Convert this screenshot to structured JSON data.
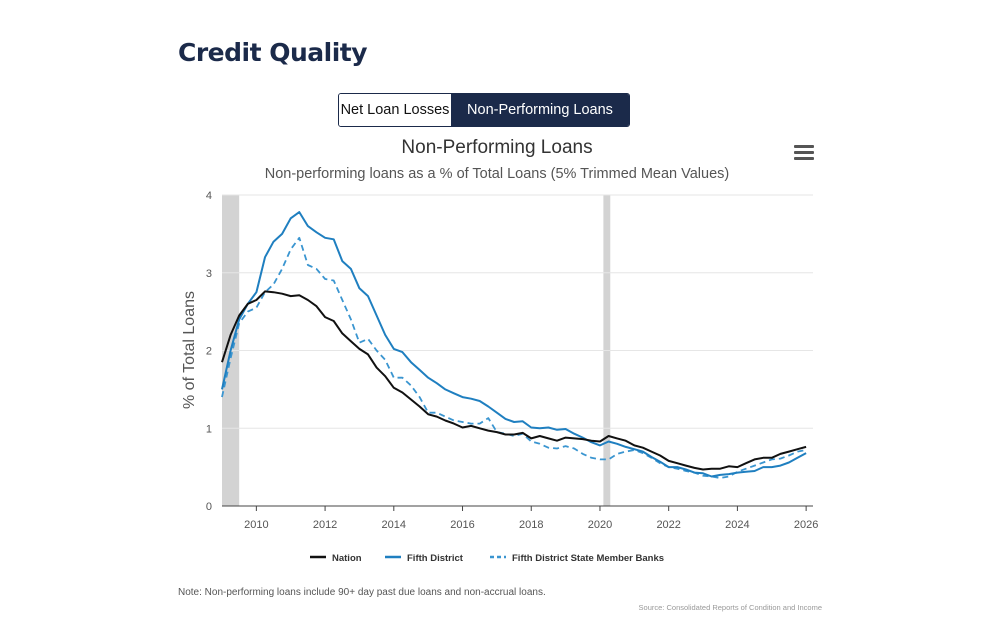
{
  "header": {
    "title": "Credit Quality"
  },
  "toggle": {
    "options": [
      {
        "label": "Net Loan Losses",
        "active": false
      },
      {
        "label": "Non-Performing Loans",
        "active": true
      }
    ]
  },
  "chart_menu_icon": "hamburger-menu-icon",
  "colors": {
    "nation": "#111111",
    "fifth_district": "#1f7fc0",
    "state_member": "#3a95d0",
    "recession": "#d3d3d3",
    "navy": "#1b2a4a"
  },
  "chart_data": {
    "type": "line",
    "title": "Non-Performing Loans",
    "subtitle": "Non-performing loans as a % of Total Loans (5% Trimmed Mean Values)",
    "ylabel": "% of Total Loans",
    "xlabel": "",
    "xlim": [
      2009.0,
      2026.2
    ],
    "ylim": [
      0,
      4
    ],
    "x_ticks": [
      2010,
      2012,
      2014,
      2016,
      2018,
      2020,
      2022,
      2024,
      2026
    ],
    "y_ticks": [
      0,
      1,
      2,
      3,
      4
    ],
    "recessions": [
      [
        2009.0,
        2009.5
      ],
      [
        2020.1,
        2020.3
      ]
    ],
    "legend_position": "bottom",
    "series": [
      {
        "name": "Nation",
        "style": "solid",
        "color": "#111111",
        "x": [
          2009.0,
          2009.25,
          2009.5,
          2009.75,
          2010.0,
          2010.25,
          2010.5,
          2010.75,
          2011.0,
          2011.25,
          2011.5,
          2011.75,
          2012.0,
          2012.25,
          2012.5,
          2012.75,
          2013.0,
          2013.25,
          2013.5,
          2013.75,
          2014.0,
          2014.25,
          2014.5,
          2014.75,
          2015.0,
          2015.25,
          2015.5,
          2015.75,
          2016.0,
          2016.25,
          2016.5,
          2016.75,
          2017.0,
          2017.25,
          2017.5,
          2017.75,
          2018.0,
          2018.25,
          2018.5,
          2018.75,
          2019.0,
          2019.25,
          2019.5,
          2019.75,
          2020.0,
          2020.25,
          2020.5,
          2020.75,
          2021.0,
          2021.25,
          2021.5,
          2021.75,
          2022.0,
          2022.25,
          2022.5,
          2022.75,
          2023.0,
          2023.25,
          2023.5,
          2023.75,
          2024.0,
          2024.25,
          2024.5,
          2024.75,
          2025.0,
          2025.25,
          2025.5,
          2025.75,
          2026.0
        ],
        "values": [
          1.85,
          2.2,
          2.45,
          2.6,
          2.65,
          2.76,
          2.75,
          2.73,
          2.7,
          2.71,
          2.65,
          2.57,
          2.43,
          2.38,
          2.22,
          2.12,
          2.02,
          1.95,
          1.78,
          1.67,
          1.52,
          1.46,
          1.37,
          1.28,
          1.18,
          1.15,
          1.1,
          1.06,
          1.01,
          1.03,
          1.0,
          0.97,
          0.95,
          0.92,
          0.92,
          0.94,
          0.87,
          0.9,
          0.87,
          0.84,
          0.88,
          0.87,
          0.86,
          0.84,
          0.83,
          0.9,
          0.87,
          0.84,
          0.78,
          0.75,
          0.7,
          0.65,
          0.58,
          0.55,
          0.52,
          0.49,
          0.47,
          0.48,
          0.48,
          0.51,
          0.5,
          0.55,
          0.6,
          0.62,
          0.62,
          0.67,
          0.7,
          0.73,
          0.76
        ]
      },
      {
        "name": "Fifth District",
        "style": "solid",
        "color": "#1f7fc0",
        "x": [
          2009.0,
          2009.25,
          2009.5,
          2009.75,
          2010.0,
          2010.25,
          2010.5,
          2010.75,
          2011.0,
          2011.25,
          2011.5,
          2011.75,
          2012.0,
          2012.25,
          2012.5,
          2012.75,
          2013.0,
          2013.25,
          2013.5,
          2013.75,
          2014.0,
          2014.25,
          2014.5,
          2014.75,
          2015.0,
          2015.25,
          2015.5,
          2015.75,
          2016.0,
          2016.25,
          2016.5,
          2016.75,
          2017.0,
          2017.25,
          2017.5,
          2017.75,
          2018.0,
          2018.25,
          2018.5,
          2018.75,
          2019.0,
          2019.25,
          2019.5,
          2019.75,
          2020.0,
          2020.25,
          2020.5,
          2020.75,
          2021.0,
          2021.25,
          2021.5,
          2021.75,
          2022.0,
          2022.25,
          2022.5,
          2022.75,
          2023.0,
          2023.25,
          2023.5,
          2023.75,
          2024.0,
          2024.25,
          2024.5,
          2024.75,
          2025.0,
          2025.25,
          2025.5,
          2025.75,
          2026.0
        ],
        "values": [
          1.5,
          2.0,
          2.4,
          2.6,
          2.75,
          3.2,
          3.4,
          3.5,
          3.7,
          3.78,
          3.6,
          3.52,
          3.45,
          3.43,
          3.15,
          3.05,
          2.8,
          2.7,
          2.45,
          2.2,
          2.02,
          1.98,
          1.85,
          1.75,
          1.65,
          1.58,
          1.5,
          1.45,
          1.4,
          1.38,
          1.35,
          1.28,
          1.2,
          1.12,
          1.08,
          1.09,
          1.01,
          1.0,
          1.01,
          0.98,
          0.99,
          0.93,
          0.88,
          0.82,
          0.78,
          0.83,
          0.8,
          0.76,
          0.73,
          0.7,
          0.63,
          0.57,
          0.5,
          0.5,
          0.47,
          0.43,
          0.42,
          0.38,
          0.4,
          0.41,
          0.43,
          0.44,
          0.45,
          0.5,
          0.5,
          0.52,
          0.56,
          0.62,
          0.68
        ]
      },
      {
        "name": "Fifth District State Member Banks",
        "style": "dashed",
        "color": "#3a95d0",
        "x": [
          2009.0,
          2009.25,
          2009.5,
          2009.75,
          2010.0,
          2010.25,
          2010.5,
          2010.75,
          2011.0,
          2011.25,
          2011.5,
          2011.75,
          2012.0,
          2012.25,
          2012.5,
          2012.75,
          2013.0,
          2013.25,
          2013.5,
          2013.75,
          2014.0,
          2014.25,
          2014.5,
          2014.75,
          2015.0,
          2015.25,
          2015.5,
          2015.75,
          2016.0,
          2016.25,
          2016.5,
          2016.75,
          2017.0,
          2017.25,
          2017.5,
          2017.75,
          2018.0,
          2018.25,
          2018.5,
          2018.75,
          2019.0,
          2019.25,
          2019.5,
          2019.75,
          2020.0,
          2020.25,
          2020.5,
          2020.75,
          2021.0,
          2021.25,
          2021.5,
          2021.75,
          2022.0,
          2022.25,
          2022.5,
          2022.75,
          2023.0,
          2023.25,
          2023.5,
          2023.75,
          2024.0,
          2024.25,
          2024.5,
          2024.75,
          2025.0,
          2025.25,
          2025.5,
          2025.75,
          2026.0
        ],
        "values": [
          1.4,
          1.9,
          2.35,
          2.5,
          2.55,
          2.75,
          2.85,
          3.05,
          3.3,
          3.45,
          3.1,
          3.05,
          2.92,
          2.9,
          2.65,
          2.4,
          2.1,
          2.15,
          2.0,
          1.88,
          1.65,
          1.65,
          1.55,
          1.4,
          1.2,
          1.2,
          1.15,
          1.1,
          1.08,
          1.06,
          1.06,
          1.13,
          0.95,
          0.93,
          0.9,
          0.93,
          0.83,
          0.8,
          0.75,
          0.74,
          0.77,
          0.74,
          0.67,
          0.62,
          0.6,
          0.6,
          0.67,
          0.7,
          0.72,
          0.68,
          0.62,
          0.55,
          0.5,
          0.48,
          0.45,
          0.43,
          0.39,
          0.38,
          0.36,
          0.38,
          0.44,
          0.48,
          0.52,
          0.56,
          0.6,
          0.61,
          0.65,
          0.7,
          0.72
        ]
      }
    ]
  },
  "footer": {
    "note": "Note: Non-performing loans include 90+ day past due loans and non-accrual loans.",
    "source": "Source: Consolidated Reports of Condition and Income"
  }
}
